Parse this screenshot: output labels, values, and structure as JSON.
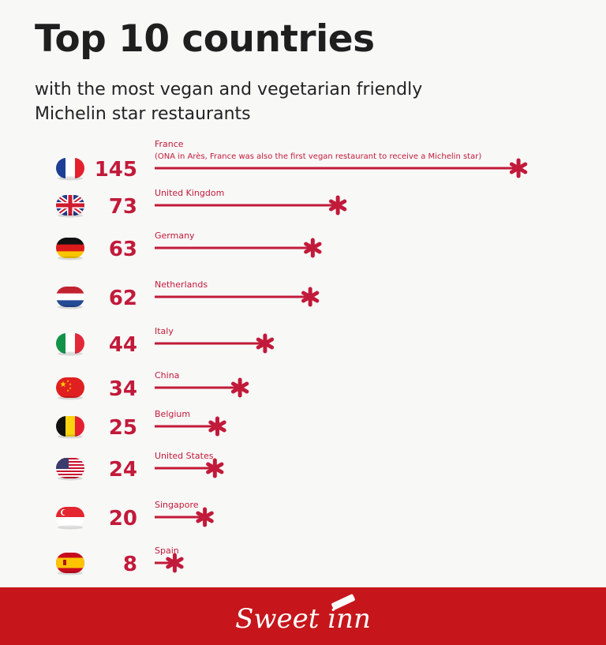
{
  "title": "Top 10 countries",
  "subtitle": "with the most vegan and vegetarian friendly Michelin star restaurants",
  "brand": "Sweet inn",
  "colors": {
    "accent": "#c6161b",
    "bar": "#c21a3a",
    "footer": "#c6161b"
  },
  "chart_data": {
    "type": "bar",
    "orientation": "horizontal",
    "categories": [
      "France",
      "United Kingdom",
      "Germany",
      "Netherlands",
      "Italy",
      "China",
      "Belgium",
      "United States",
      "Singapore",
      "Spain"
    ],
    "notes": [
      "(ONA in Arès, France was also the first vegan restaurant to receive a Michelin star)",
      "",
      "",
      "",
      "",
      "",
      "",
      "",
      "",
      ""
    ],
    "values": [
      145,
      73,
      63,
      62,
      44,
      34,
      25,
      24,
      20,
      8
    ],
    "flags": [
      "france-flag-icon",
      "uk-flag-icon",
      "germany-flag-icon",
      "netherlands-flag-icon",
      "italy-flag-icon",
      "china-flag-icon",
      "belgium-flag-icon",
      "usa-flag-icon",
      "singapore-flag-icon",
      "spain-flag-icon"
    ],
    "marker": "asterisk"
  }
}
